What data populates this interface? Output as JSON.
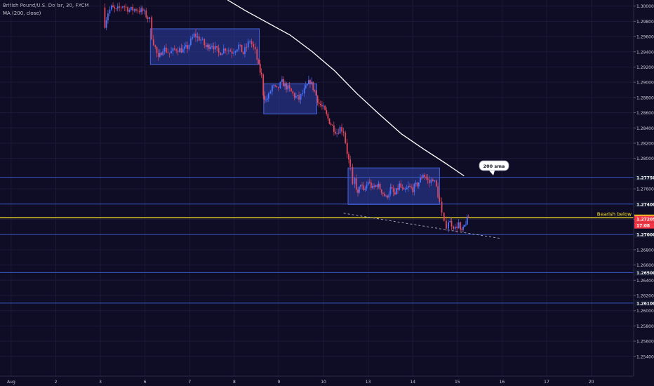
{
  "legend": {
    "symbol": "British Pound/U.S. Dollar, 30, FXCM",
    "indicator": "MA (200, close)"
  },
  "chart_data": {
    "type": "candlestick",
    "instrument": "British Pound/U.S. Dollar",
    "timeframe": "30",
    "source": "FXCM",
    "ylim": [
      1.2514,
      1.3008
    ],
    "y_ticks": [
      1.3,
      1.298,
      1.296,
      1.294,
      1.292,
      1.29,
      1.288,
      1.286,
      1.284,
      1.282,
      1.28,
      1.276,
      1.272,
      1.268,
      1.266,
      1.264,
      1.262,
      1.26,
      1.258,
      1.256,
      1.254
    ],
    "y_tick_labels": [
      "1.30000",
      "1.29800",
      "1.29600",
      "1.29400",
      "1.29200",
      "1.29000",
      "1.28800",
      "1.28600",
      "1.28400",
      "1.28200",
      "1.28000",
      "1.27600",
      "1.27200",
      "1.26800",
      "1.26600",
      "1.26400",
      "1.26200",
      "1.26000",
      "1.25800",
      "1.25600",
      "1.25400"
    ],
    "x_ticks": [
      {
        "label": "Aug",
        "pos": 0.25
      },
      {
        "label": "2",
        "pos": 1.25
      },
      {
        "label": "3",
        "pos": 2.25
      },
      {
        "label": "6",
        "pos": 3.25
      },
      {
        "label": "7",
        "pos": 4.25
      },
      {
        "label": "8",
        "pos": 5.25
      },
      {
        "label": "9",
        "pos": 6.25
      },
      {
        "label": "10",
        "pos": 7.25
      },
      {
        "label": "13",
        "pos": 8.25
      },
      {
        "label": "14",
        "pos": 9.25
      },
      {
        "label": "15",
        "pos": 10.25
      },
      {
        "label": "16",
        "pos": 11.25
      },
      {
        "label": "17",
        "pos": 12.25
      },
      {
        "label": "20",
        "pos": 13.25
      }
    ],
    "xlim": [
      0,
      14.2
    ],
    "price_path": [
      [
        2.3,
        1.2998
      ],
      [
        2.35,
        1.2976
      ],
      [
        2.42,
        1.2992
      ],
      [
        2.5,
        1.2998
      ],
      [
        2.6,
        1.2994
      ],
      [
        2.75,
        1.3001
      ],
      [
        2.9,
        1.2995
      ],
      [
        3.05,
        1.2996
      ],
      [
        3.2,
        1.2993
      ],
      [
        3.35,
        1.2982
      ],
      [
        3.4,
        1.296
      ],
      [
        3.48,
        1.2945
      ],
      [
        3.55,
        1.293
      ],
      [
        3.65,
        1.2945
      ],
      [
        3.8,
        1.2938
      ],
      [
        3.95,
        1.2944
      ],
      [
        4.1,
        1.2942
      ],
      [
        4.2,
        1.2946
      ],
      [
        4.35,
        1.2962
      ],
      [
        4.5,
        1.2956
      ],
      [
        4.62,
        1.2946
      ],
      [
        4.75,
        1.295
      ],
      [
        4.9,
        1.2938
      ],
      [
        5.05,
        1.2945
      ],
      [
        5.2,
        1.294
      ],
      [
        5.35,
        1.2948
      ],
      [
        5.45,
        1.2938
      ],
      [
        5.6,
        1.2955
      ],
      [
        5.72,
        1.294
      ],
      [
        5.8,
        1.292
      ],
      [
        5.86,
        1.2908
      ],
      [
        5.9,
        1.2885
      ],
      [
        5.96,
        1.2876
      ],
      [
        6.02,
        1.2882
      ],
      [
        6.1,
        1.2895
      ],
      [
        6.2,
        1.289
      ],
      [
        6.32,
        1.29
      ],
      [
        6.45,
        1.2892
      ],
      [
        6.6,
        1.2882
      ],
      [
        6.7,
        1.2878
      ],
      [
        6.82,
        1.2889
      ],
      [
        6.95,
        1.2902
      ],
      [
        7.05,
        1.2888
      ],
      [
        7.15,
        1.2872
      ],
      [
        7.25,
        1.2865
      ],
      [
        7.35,
        1.2852
      ],
      [
        7.45,
        1.2842
      ],
      [
        7.55,
        1.2834
      ],
      [
        7.62,
        1.284
      ],
      [
        7.7,
        1.2836
      ],
      [
        7.78,
        1.2808
      ],
      [
        7.85,
        1.2786
      ],
      [
        7.9,
        1.2762
      ],
      [
        7.95,
        1.2772
      ],
      [
        8.02,
        1.2752
      ],
      [
        8.08,
        1.2768
      ],
      [
        8.15,
        1.2755
      ],
      [
        8.25,
        1.277
      ],
      [
        8.35,
        1.276
      ],
      [
        8.45,
        1.2766
      ],
      [
        8.55,
        1.2758
      ],
      [
        8.65,
        1.2748
      ],
      [
        8.75,
        1.276
      ],
      [
        8.85,
        1.2752
      ],
      [
        8.95,
        1.2765
      ],
      [
        9.05,
        1.2755
      ],
      [
        9.15,
        1.2762
      ],
      [
        9.25,
        1.276
      ],
      [
        9.35,
        1.2766
      ],
      [
        9.42,
        1.2772
      ],
      [
        9.48,
        1.278
      ],
      [
        9.55,
        1.2774
      ],
      [
        9.62,
        1.2768
      ],
      [
        9.7,
        1.2774
      ],
      [
        9.78,
        1.2762
      ],
      [
        9.85,
        1.2742
      ],
      [
        9.9,
        1.2726
      ],
      [
        9.95,
        1.2714
      ],
      [
        10.0,
        1.2712
      ],
      [
        10.05,
        1.2718
      ],
      [
        10.12,
        1.2714
      ],
      [
        10.2,
        1.2708
      ],
      [
        10.28,
        1.2715
      ],
      [
        10.32,
        1.2703
      ],
      [
        10.38,
        1.2706
      ],
      [
        10.44,
        1.2716
      ],
      [
        10.5,
        1.2722
      ]
    ],
    "highlight_boxes": [
      {
        "x": [
          3.37,
          5.81
        ],
        "y": [
          1.29234,
          1.29702
        ]
      },
      {
        "x": [
          5.91,
          7.1
        ],
        "y": [
          1.28585,
          1.28978
        ]
      },
      {
        "x": [
          7.8,
          9.85
        ],
        "y": [
          1.27395,
          1.27875
        ]
      }
    ],
    "sma": {
      "label": "200 sma",
      "color": "#ffffff",
      "points": [
        [
          5.1,
          1.3008
        ],
        [
          5.5,
          1.2994
        ],
        [
          6.0,
          1.2978
        ],
        [
          6.5,
          1.2962
        ],
        [
          7.0,
          1.294
        ],
        [
          7.5,
          1.2915
        ],
        [
          8.0,
          1.2885
        ],
        [
          8.5,
          1.2858
        ],
        [
          9.0,
          1.2832
        ],
        [
          9.5,
          1.2812
        ],
        [
          10.0,
          1.2793
        ],
        [
          10.4,
          1.2777
        ]
      ]
    },
    "levels": [
      {
        "price": 1.2775,
        "label": "1.27750",
        "color": "#3d59c9",
        "text_color": "#ffffff",
        "bg": "#13172f"
      },
      {
        "price": 1.274,
        "label": "1.27400",
        "color": "#3d59c9",
        "text_color": "#ffffff",
        "bg": "#13172f"
      },
      {
        "price": 1.2722,
        "label": "1.27220",
        "color": "#f7e325",
        "text_color": "#0f0c25",
        "bg": "#f7e325",
        "annotation": "Bearish below"
      },
      {
        "price": 1.27,
        "label": "1.27000",
        "color": "#3d59c9",
        "text_color": "#ffffff",
        "bg": "#13172f"
      },
      {
        "price": 1.265,
        "label": "1.26500",
        "color": "#3d59c9",
        "text_color": "#ffffff",
        "bg": "#13172f"
      },
      {
        "price": 1.261,
        "label": "1.26100",
        "color": "#3d59c9",
        "text_color": "#ffffff",
        "bg": "#13172f"
      }
    ],
    "price_markers": [
      {
        "price": 1.27205,
        "label": "1.27205",
        "bg": "#f23645"
      },
      {
        "price": 1.2712,
        "label": "17:08",
        "bg": "#f23645"
      }
    ],
    "trendline": {
      "from": [
        7.7,
        1.2728
      ],
      "to": [
        11.2,
        1.2695
      ],
      "style": "dashed",
      "color": "#9aa0b5"
    },
    "colors": {
      "background": "#0f0c25",
      "grid": "#1c1a38",
      "up": "#4a72ff",
      "down": "#e2485b",
      "box_fill": "#2b3fa6",
      "axis_text": "#c9cbd6"
    }
  }
}
